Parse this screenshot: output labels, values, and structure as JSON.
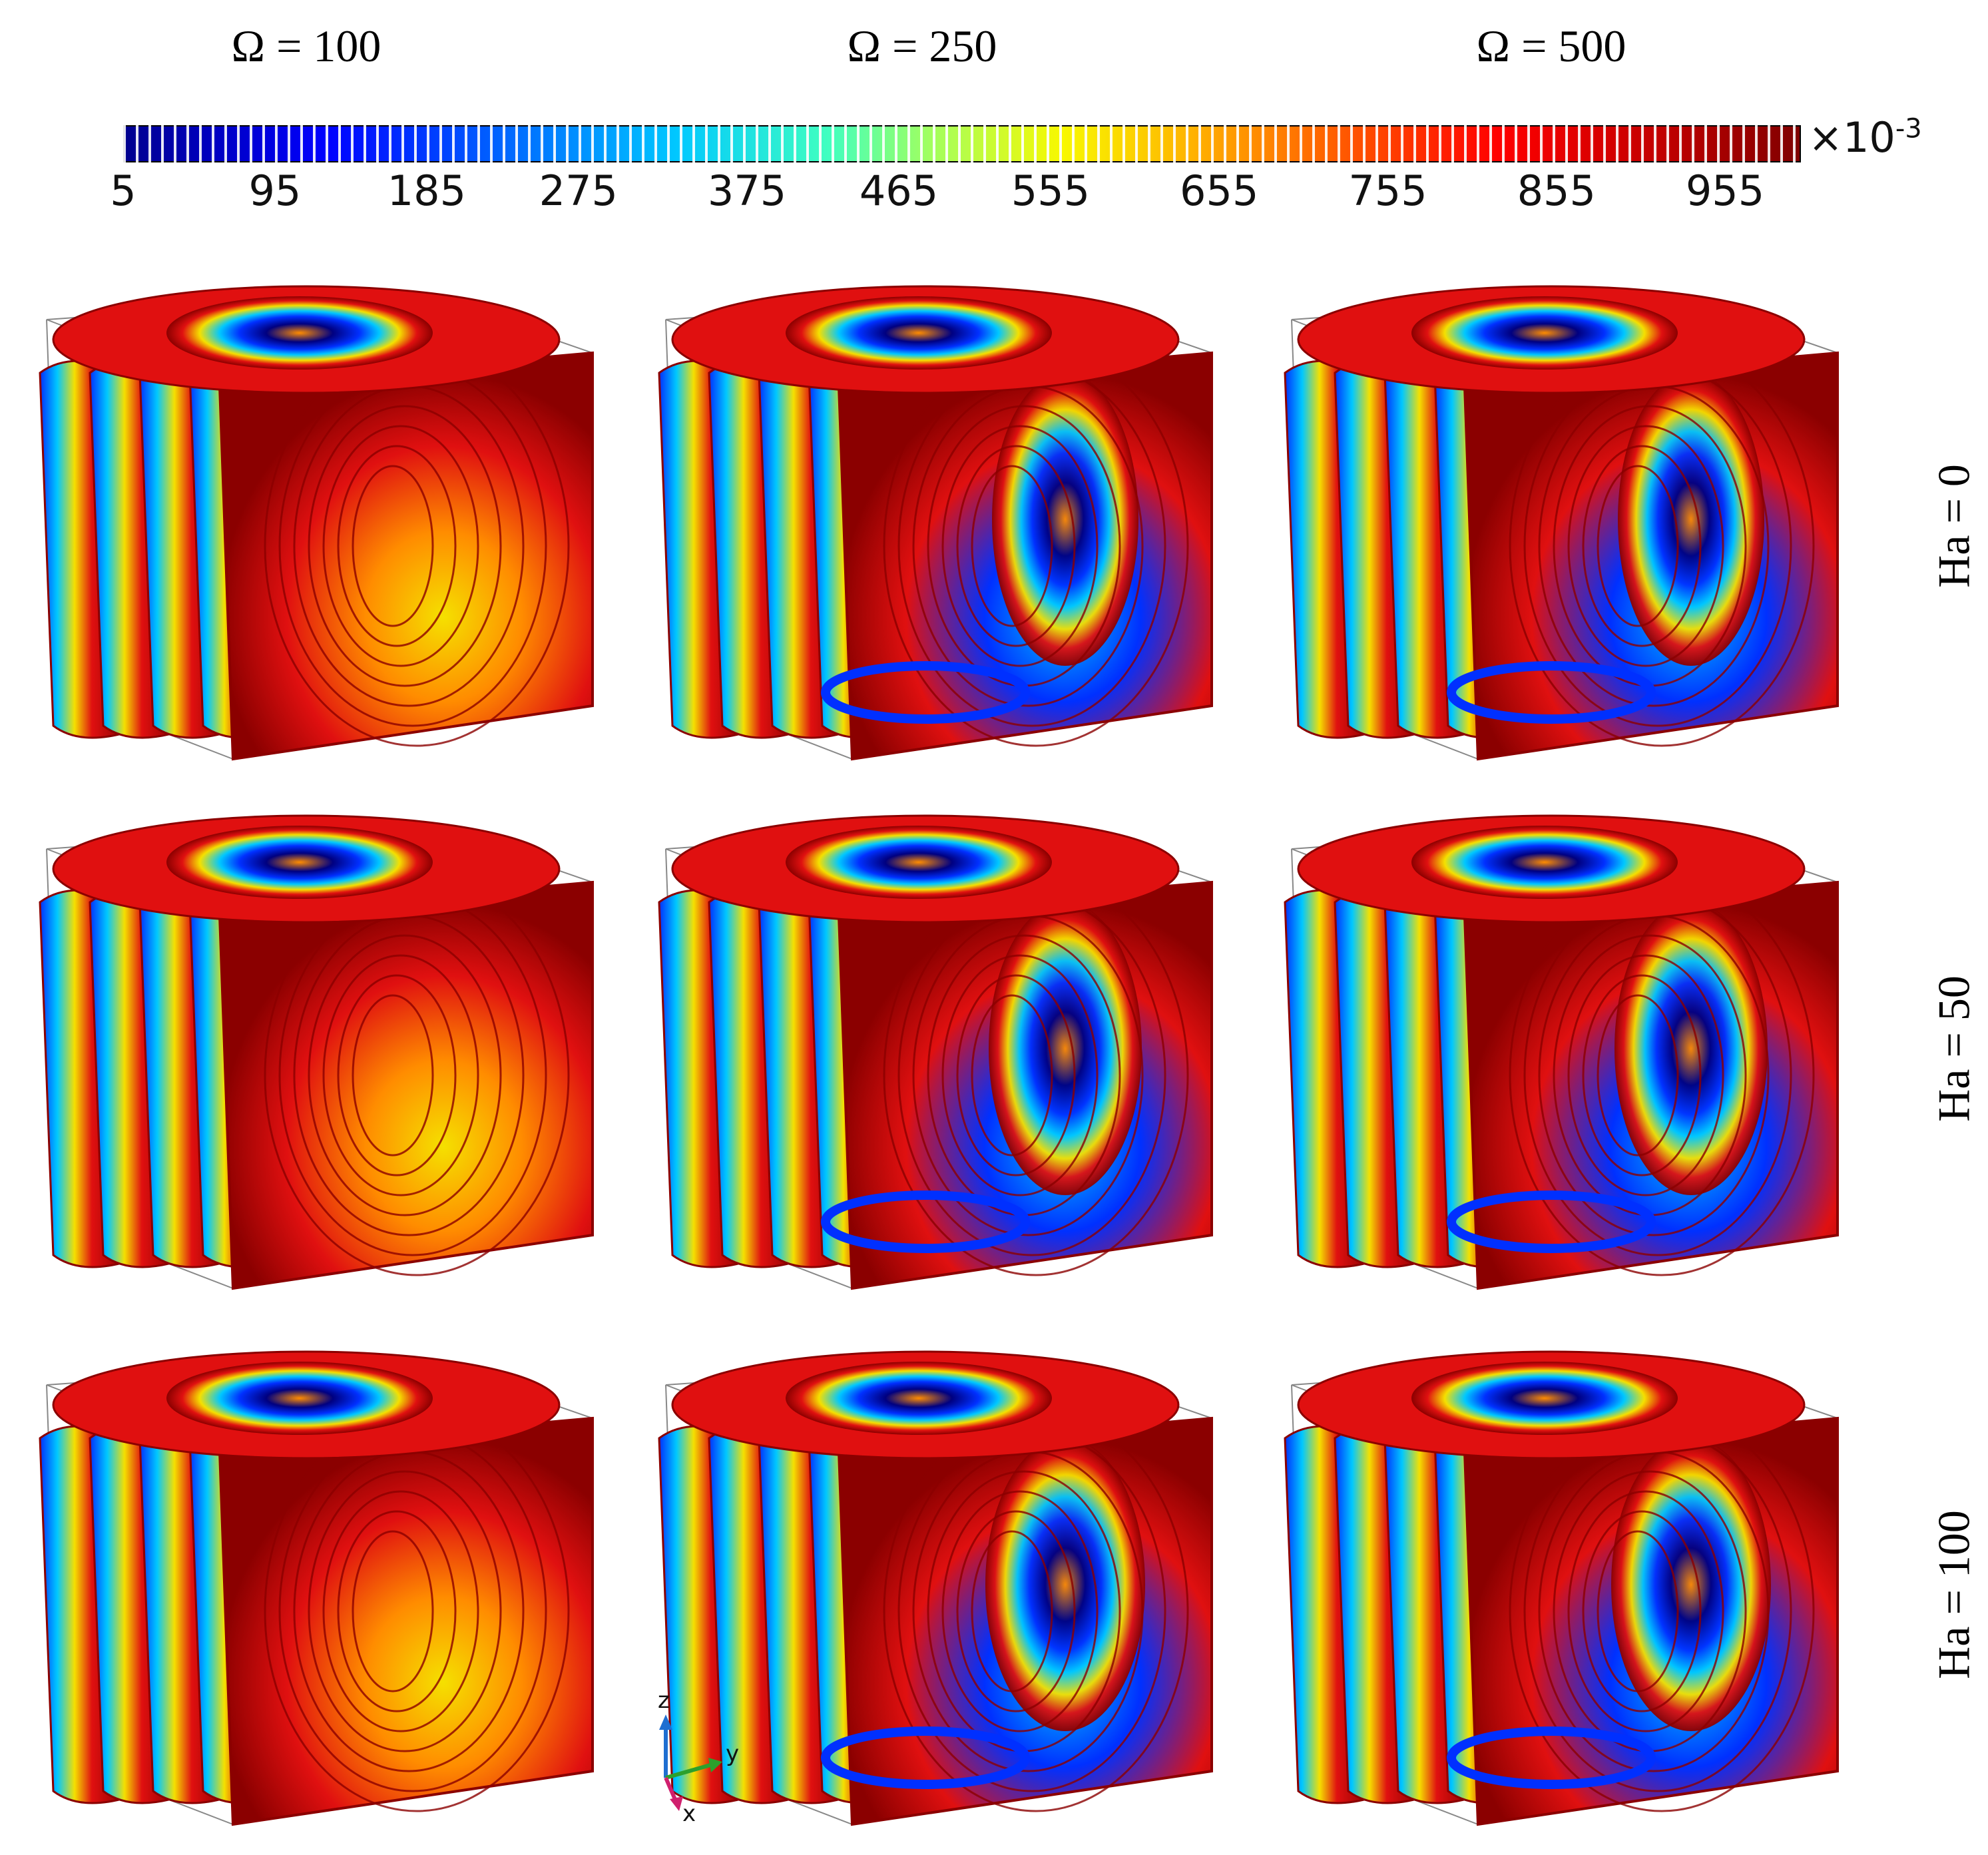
{
  "column_titles": [
    "Ω = 100",
    "Ω = 250",
    "Ω = 500"
  ],
  "row_labels": [
    "Ha = 0",
    "Ha = 50",
    "Ha = 100"
  ],
  "colorbar": {
    "ticks": [
      "5",
      "95",
      "185",
      "275",
      "375",
      "465",
      "555",
      "655",
      "755",
      "855",
      "955"
    ],
    "tick_values": [
      5,
      95,
      185,
      275,
      375,
      465,
      555,
      655,
      755,
      855,
      955
    ],
    "range": [
      5,
      1000
    ],
    "scale_base": "×10",
    "scale_exp": "-3",
    "colormap": "jet"
  },
  "axes": {
    "z": "z",
    "y": "y",
    "x": "x"
  },
  "colors": {
    "dark_red": "#8b0000",
    "red": "#e01010",
    "orange": "#ff8c00",
    "yellow": "#f5e000",
    "cyan": "#00c8ff",
    "blue": "#0030ff",
    "navy": "#000080",
    "axis_x": "#d0206e",
    "axis_y": "#2ca02c",
    "axis_z": "#1f6fd1"
  }
}
